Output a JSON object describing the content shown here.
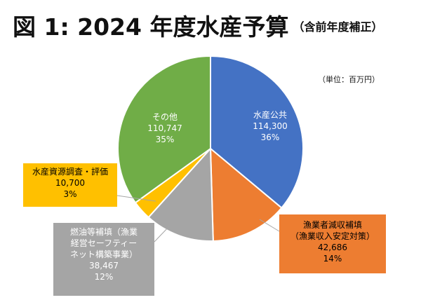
{
  "title": "図 1: 2024 年度水産予算",
  "subtitle": "（含前年度補正）",
  "unit_note": "（単位：百万円）",
  "chart_data": {
    "type": "pie",
    "title": "図 1: 2024 年度水産予算",
    "subtitle": "（含前年度補正）",
    "unit": "百万円",
    "legend": "none",
    "slices": [
      {
        "key": "public",
        "label_lines": [
          "水産公共"
        ],
        "value": 114300,
        "value_text": "114,300",
        "percent": "36%",
        "color": "#4472c4"
      },
      {
        "key": "fishery",
        "label_lines": [
          "漁業者減収補填",
          "（漁業収入安定対策）"
        ],
        "value": 42686,
        "value_text": "42,686",
        "percent": "14%",
        "color": "#ed7d31"
      },
      {
        "key": "fuel",
        "label_lines": [
          "燃油等補填（漁業",
          "経営セーフティー",
          "ネット構築事業）"
        ],
        "value": 38467,
        "value_text": "38,467",
        "percent": "12%",
        "color": "#a5a5a5"
      },
      {
        "key": "resource",
        "label_lines": [
          "水産資源調査・評価"
        ],
        "value": 10700,
        "value_text": "10,700",
        "percent": "3%",
        "color": "#ffc000"
      },
      {
        "key": "other",
        "label_lines": [
          "その他"
        ],
        "value": 110747,
        "value_text": "110,747",
        "percent": "35%",
        "color": "#70ad47"
      }
    ]
  }
}
